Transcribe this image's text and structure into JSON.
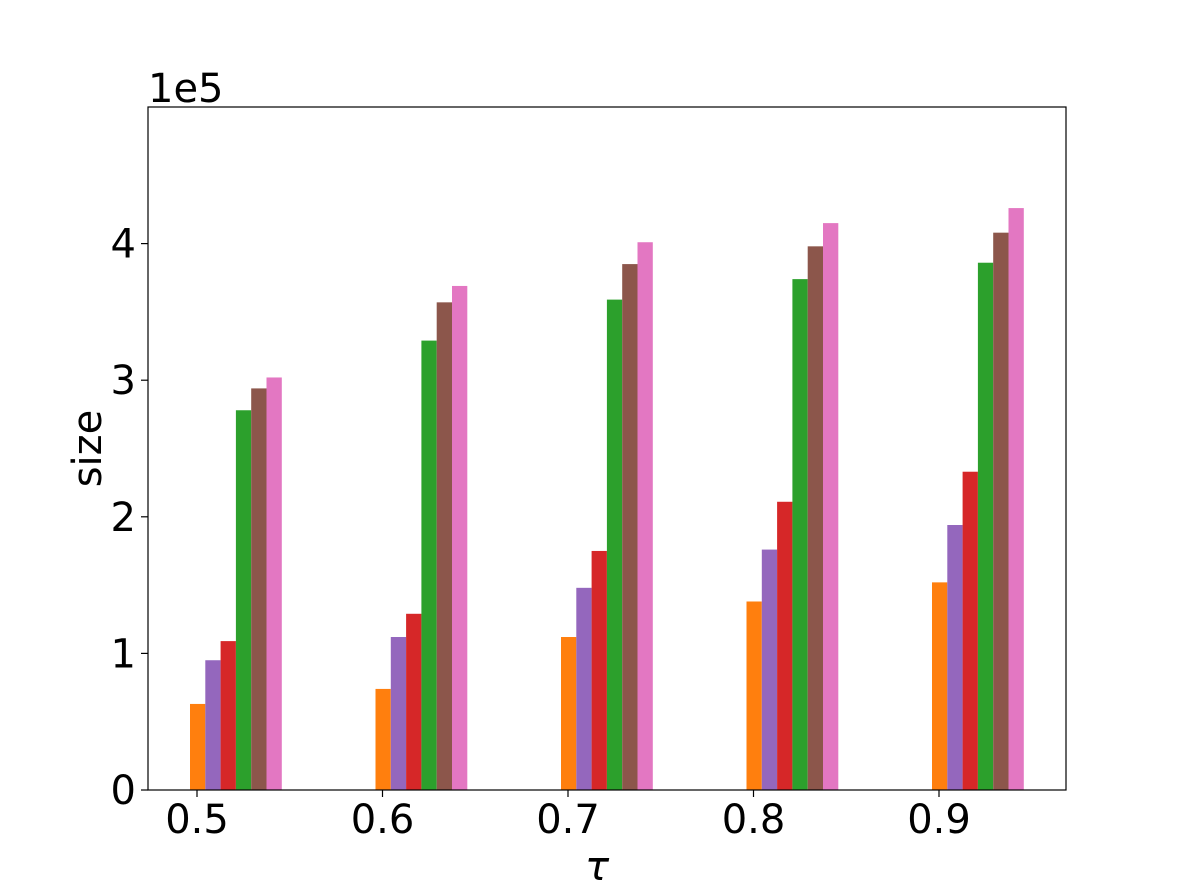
{
  "chart_data": {
    "type": "bar",
    "xlabel": "τ",
    "ylabel": "size",
    "y_offset_label": "1e5",
    "categories": [
      "0.5",
      "0.6",
      "0.7",
      "0.8",
      "0.9"
    ],
    "ylim": [
      0,
      5.0
    ],
    "yticks": [
      "0",
      "1",
      "2",
      "3",
      "4"
    ],
    "grid": false,
    "legend": "none",
    "series": [
      {
        "color": "#ff7f0e",
        "values": [
          0.63,
          0.74,
          1.12,
          1.38,
          1.52
        ]
      },
      {
        "color": "#9467bd",
        "values": [
          0.95,
          1.12,
          1.48,
          1.76,
          1.94
        ]
      },
      {
        "color": "#d62728",
        "values": [
          1.09,
          1.29,
          1.75,
          2.11,
          2.33
        ]
      },
      {
        "color": "#2ca02c",
        "values": [
          2.78,
          3.29,
          3.59,
          3.74,
          3.86
        ]
      },
      {
        "color": "#8c564b",
        "values": [
          2.94,
          3.57,
          3.85,
          3.98,
          4.08
        ]
      },
      {
        "color": "#e377c2",
        "values": [
          3.02,
          3.69,
          4.01,
          4.15,
          4.26
        ]
      }
    ]
  }
}
